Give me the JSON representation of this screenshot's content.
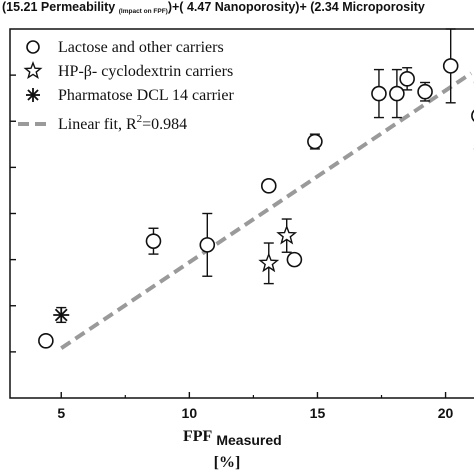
{
  "chart_data": {
    "type": "scatter",
    "title_parts": {
      "a": "(15.21 Permeability ",
      "sub": "(Impact on FPF)",
      "b": ")+( 4.47 Nanoporosity)+ (2.34 Microporosity"
    },
    "xlabel": "FPF",
    "xlabel_sub": "Measured",
    "xlabel_unit": "[%]",
    "xlim": [
      3,
      21.5
    ],
    "ylim": [
      0,
      1
    ],
    "x_ticks": [
      5,
      10,
      15,
      20
    ],
    "legend_position": "top-left",
    "legend": {
      "lactose": "Lactose and other carriers",
      "hpbcd": "HP-β- cyclodextrin carriers",
      "pharmatose": "Pharmatose DCL 14 carrier",
      "fit": "Linear fit, R",
      "fit_sup": "2",
      "fit_value": "=0.984"
    },
    "series": [
      {
        "name": "Lactose and other carriers",
        "marker": "circle",
        "points": [
          {
            "x": 4.4,
            "y": 0.155,
            "err": 0.012
          },
          {
            "x": 8.6,
            "y": 0.425,
            "err": 0.035
          },
          {
            "x": 10.7,
            "y": 0.415,
            "err": 0.085
          },
          {
            "x": 13.1,
            "y": 0.575,
            "err": 0.015
          },
          {
            "x": 14.1,
            "y": 0.375,
            "err": 0.015
          },
          {
            "x": 14.9,
            "y": 0.695,
            "err": 0.02
          },
          {
            "x": 17.4,
            "y": 0.825,
            "err": 0.065
          },
          {
            "x": 18.1,
            "y": 0.825,
            "err": 0.065
          },
          {
            "x": 18.5,
            "y": 0.865,
            "err": 0.03
          },
          {
            "x": 19.2,
            "y": 0.83,
            "err": 0.025
          },
          {
            "x": 20.2,
            "y": 0.9,
            "err": 0.1
          },
          {
            "x": 21.3,
            "y": 0.765,
            "err": 0.09
          }
        ]
      },
      {
        "name": "HP-β- cyclodextrin carriers",
        "marker": "star",
        "points": [
          {
            "x": 13.1,
            "y": 0.365,
            "err": 0.055
          },
          {
            "x": 13.8,
            "y": 0.44,
            "err": 0.045
          }
        ]
      },
      {
        "name": "Pharmatose DCL 14 carrier",
        "marker": "asterisk",
        "points": [
          {
            "x": 5.0,
            "y": 0.225,
            "err": 0.02
          }
        ]
      }
    ],
    "fit_line": {
      "x": [
        5.0,
        21.0
      ],
      "y": [
        0.135,
        0.88
      ]
    },
    "colors": {
      "axis": "#111111",
      "marker": "#111111",
      "fit": "#9a9a9a",
      "background": "#ffffff"
    }
  }
}
